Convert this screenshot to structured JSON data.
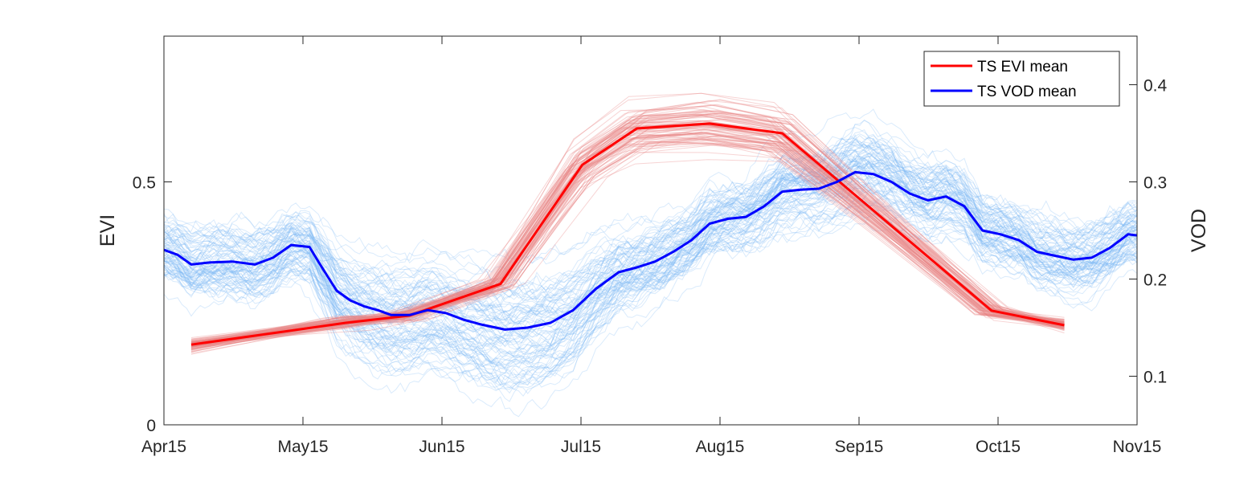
{
  "chart_data": {
    "type": "line",
    "title": "",
    "xlabel": "",
    "x_ticks": [
      "Apr15",
      "May15",
      "Jun15",
      "Jul15",
      "Aug15",
      "Sep15",
      "Oct15",
      "Nov15"
    ],
    "x_range_days": [
      0,
      214
    ],
    "left_axis": {
      "label": "EVI",
      "ylim": [
        0,
        0.8
      ],
      "ticks": [
        0,
        0.5
      ]
    },
    "right_axis": {
      "label": "VOD",
      "ylim": [
        0.05,
        0.45
      ],
      "ticks": [
        0.1,
        0.2,
        0.3,
        0.4
      ]
    },
    "legend": {
      "position": "top-right",
      "entries": [
        "TS EVI mean",
        "TS VOD mean"
      ]
    },
    "colors": {
      "evi_mean": "#ff0000",
      "vod_mean": "#0000ff",
      "evi_members": "#e88585",
      "vod_members": "#7ab8f5"
    },
    "series": [
      {
        "name": "TS EVI mean",
        "axis": "left",
        "x": [
          6,
          40,
          54,
          74,
          92,
          104,
          120,
          136,
          182,
          198
        ],
        "values": [
          0.165,
          0.21,
          0.225,
          0.29,
          0.535,
          0.61,
          0.62,
          0.6,
          0.235,
          0.205
        ]
      },
      {
        "name": "TS VOD mean",
        "axis": "right",
        "x": [
          0,
          3,
          6,
          10,
          15,
          20,
          24,
          28,
          32,
          35,
          38,
          41,
          44,
          47,
          50,
          54,
          58,
          62,
          66,
          70,
          75,
          80,
          85,
          90,
          95,
          100,
          104,
          108,
          112,
          116,
          120,
          124,
          128,
          132,
          136,
          140,
          144,
          148,
          152,
          156,
          160,
          164,
          168,
          172,
          176,
          180,
          184,
          188,
          192,
          196,
          200,
          204,
          208,
          212,
          214
        ],
        "values": [
          0.23,
          0.225,
          0.215,
          0.217,
          0.218,
          0.215,
          0.222,
          0.235,
          0.233,
          0.21,
          0.188,
          0.178,
          0.172,
          0.168,
          0.163,
          0.163,
          0.168,
          0.165,
          0.158,
          0.153,
          0.148,
          0.15,
          0.155,
          0.168,
          0.19,
          0.207,
          0.212,
          0.218,
          0.228,
          0.24,
          0.257,
          0.262,
          0.264,
          0.275,
          0.29,
          0.292,
          0.293,
          0.3,
          0.31,
          0.308,
          0.3,
          0.288,
          0.281,
          0.285,
          0.275,
          0.25,
          0.246,
          0.24,
          0.228,
          0.224,
          0.22,
          0.222,
          0.232,
          0.246,
          0.245
        ]
      }
    ]
  }
}
